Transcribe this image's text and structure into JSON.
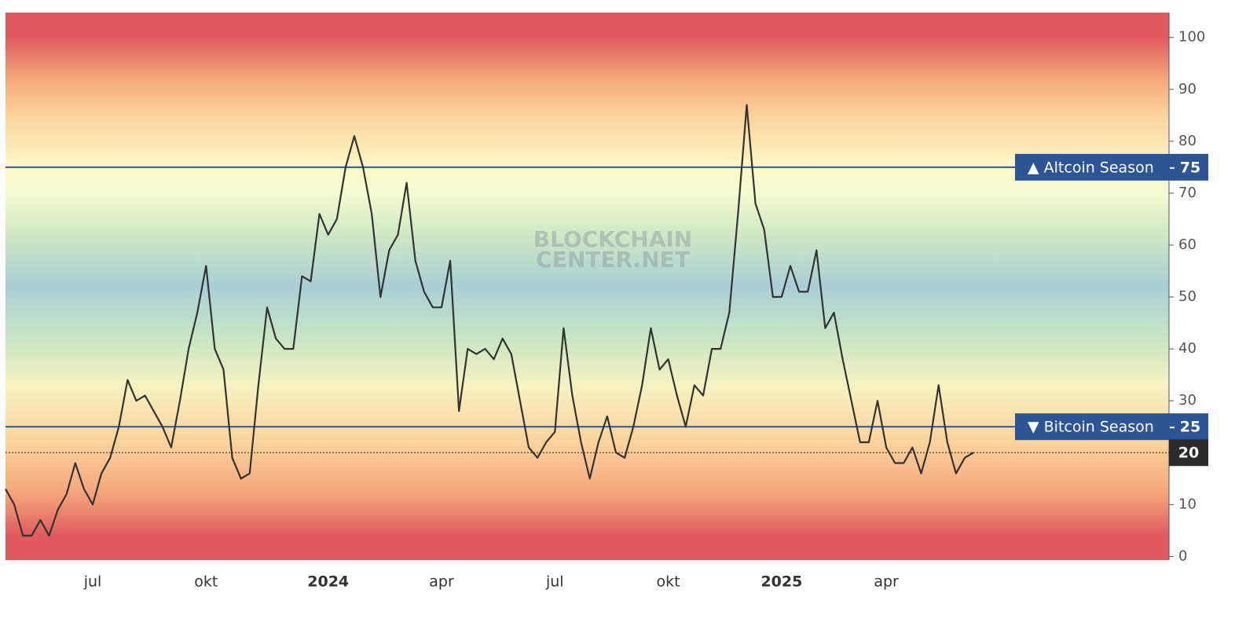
{
  "chart_data": {
    "type": "line",
    "color": "#333333",
    "categories": [
      null,
      null,
      null,
      null,
      null,
      null,
      null,
      null,
      null,
      null,
      "jul",
      null,
      null,
      null,
      null,
      null,
      null,
      null,
      null,
      null,
      null,
      null,
      null,
      "okt",
      null,
      null,
      null,
      null,
      null,
      null,
      null,
      null,
      null,
      null,
      null,
      null,
      null,
      "2024",
      null,
      null,
      null,
      null,
      null,
      null,
      null,
      null,
      null,
      null,
      null,
      null,
      "apr",
      null,
      null,
      null,
      null,
      null,
      null,
      null,
      null,
      null,
      null,
      null,
      null,
      "jul",
      null,
      null,
      null,
      null,
      null,
      null,
      null,
      null,
      null,
      null,
      null,
      null,
      "okt",
      null,
      null,
      null,
      null,
      null,
      null,
      null,
      null,
      null,
      null,
      null,
      null,
      "2025",
      null,
      null,
      null,
      null,
      null,
      null,
      null,
      null,
      null,
      null,
      null,
      "apr",
      null,
      null,
      null,
      null,
      null,
      null,
      null,
      null,
      null,
      null
    ],
    "values": [
      13,
      10,
      4,
      4,
      7,
      4,
      9,
      12,
      18,
      13,
      10,
      16,
      19,
      25,
      34,
      30,
      31,
      28,
      25,
      21,
      30,
      40,
      47,
      56,
      40,
      36,
      19,
      15,
      16,
      33,
      48,
      42,
      40,
      40,
      54,
      53,
      66,
      62,
      65,
      75,
      81,
      75,
      66,
      50,
      59,
      62,
      72,
      57,
      51,
      48,
      48,
      57,
      28,
      40,
      39,
      40,
      38,
      42,
      39,
      30,
      21,
      19,
      22,
      24,
      44,
      31,
      22,
      15,
      22,
      27,
      20,
      19,
      25,
      33,
      44,
      36,
      38,
      31,
      25,
      33,
      31,
      40,
      40,
      47,
      66,
      87,
      68,
      63,
      50,
      50,
      56,
      51,
      51,
      59,
      44,
      47,
      38,
      30,
      22,
      22,
      30,
      21,
      18,
      18,
      21,
      16,
      22,
      33,
      22,
      16,
      19,
      20
    ],
    "ylim": [
      -0.7,
      104.8
    ],
    "yticks": [
      0,
      10,
      20,
      30,
      40,
      50,
      60,
      70,
      80,
      90,
      100
    ],
    "reference_lines": [
      {
        "label": "▲ Altcoin Season",
        "value": 75,
        "color": "#2d5596"
      },
      {
        "label": "▼ Bitcoin Season",
        "value": 25,
        "color": "#2d5596"
      }
    ],
    "watermark": [
      "BLOCKCHAIN",
      "CENTER.NET"
    ]
  }
}
